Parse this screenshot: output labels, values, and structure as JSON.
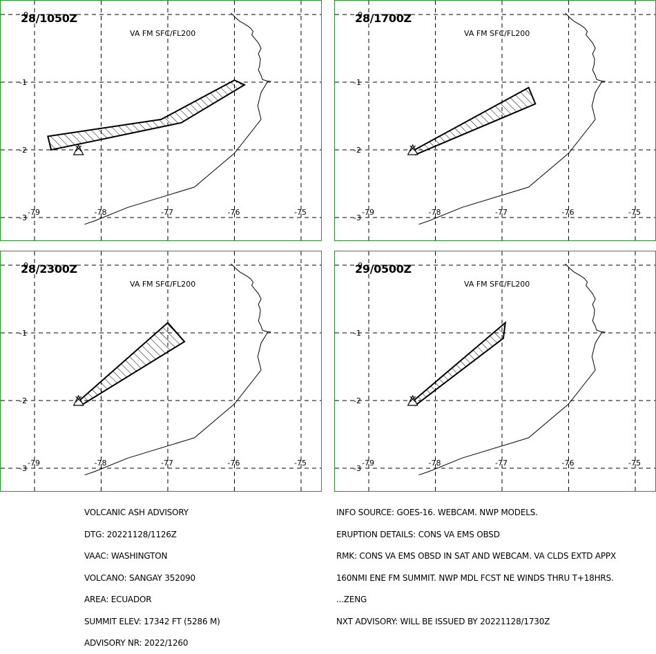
{
  "panels": [
    {
      "time": "28/1050Z",
      "level": "VA FM SFC/FL200",
      "ash": [
        [
          -78.8,
          -1.8
        ],
        [
          -77.1,
          -1.55
        ],
        [
          -76.0,
          -0.97
        ],
        [
          -75.85,
          -1.04
        ],
        [
          -76.8,
          -1.6
        ],
        [
          -78.75,
          -2.0
        ]
      ]
    },
    {
      "time": "28/1700Z",
      "level": "VA FM SFC/FL200",
      "ash": [
        [
          -78.35,
          -2.02
        ],
        [
          -76.6,
          -1.08
        ],
        [
          -76.5,
          -1.32
        ],
        [
          -78.3,
          -2.07
        ]
      ]
    },
    {
      "time": "28/2300Z",
      "level": "VA FM SFC/FL200",
      "ash": [
        [
          -78.35,
          -2.02
        ],
        [
          -77.0,
          -0.85
        ],
        [
          -76.75,
          -1.13
        ],
        [
          -78.3,
          -2.07
        ]
      ]
    },
    {
      "time": "29/0500Z",
      "level": "VA FM SFC/FL200",
      "ash": [
        [
          -78.35,
          -2.02
        ],
        [
          -76.95,
          -0.85
        ],
        [
          -76.98,
          -1.08
        ],
        [
          -78.3,
          -2.07
        ]
      ]
    }
  ],
  "axis": {
    "lon_labels": [
      "-79",
      "-78",
      "-77",
      "-76",
      "-75"
    ],
    "lat_labels": [
      "0",
      "-1",
      "-2",
      "-3"
    ]
  },
  "volcano": {
    "name": "SANGAY",
    "lon": -78.34,
    "lat": -2.0
  },
  "advisory_left": [
    "VOLCANIC ASH ADVISORY",
    "DTG: 20221128/1126Z",
    "VAAC: WASHINGTON",
    "VOLCANO: SANGAY 352090",
    "AREA: ECUADOR",
    "SUMMIT ELEV: 17342 FT (5286 M)",
    "ADVISORY NR: 2022/1260"
  ],
  "advisory_right": [
    "INFO SOURCE: GOES-16. WEBCAM. NWP MODELS.",
    "ERUPTION DETAILS: CONS VA EMS OBSD",
    "RMK: CONS VA EMS OBSD IN SAT AND WEBCAM. VA CLDS EXTD APPX",
    "160NMI ENE FM SUMMIT. NWP MDL FCST NE WINDS THRU T+18HRS.",
    "...ZENG",
    "NXT ADVISORY: WILL BE ISSUED BY 20221128/1730Z"
  ],
  "colors": {
    "frame": "#2f8f2f",
    "lines": "#000000"
  },
  "map_elements": [
    "coastline",
    "ash-cloud-hatched",
    "volcano-triangle-icon"
  ]
}
